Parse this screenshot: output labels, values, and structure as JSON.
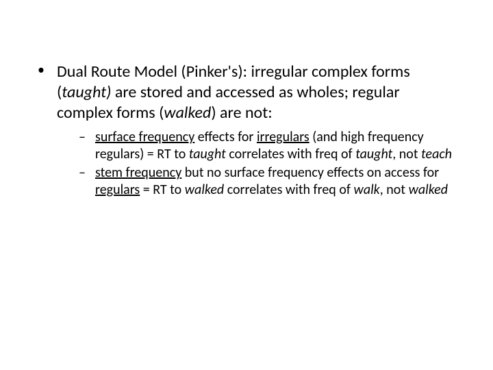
{
  "slide": {
    "background_color": "#ffffff",
    "text_color": "#000000",
    "font_family": "Calibri",
    "level1_fontsize": 24,
    "level2_fontsize": 20,
    "bullet_char": "•",
    "dash_char": "–",
    "main": {
      "t1": "Dual Route Model (Pinker's):  irregular complex forms (",
      "t2": "taught)",
      "t3": " are stored and accessed as wholes; regular complex forms (",
      "t4": "walked",
      "t5": ") are not:"
    },
    "sub1": {
      "t1": "surface frequency",
      "t2": " effects for ",
      "t3": "irregulars",
      "t4": " (and high frequency regulars) = RT to ",
      "t5": "taught",
      "t6": " correlates with freq of ",
      "t7": "taught",
      "t8": ", not ",
      "t9": "teach"
    },
    "sub2": {
      "t1": "stem frequency",
      "t2": " but no surface frequency effects on access for ",
      "t3": "regulars",
      "t4": " = RT to ",
      "t5": "walked",
      "t6": " correlates with freq of ",
      "t7": "walk",
      "t8": ", not ",
      "t9": "walked"
    }
  }
}
